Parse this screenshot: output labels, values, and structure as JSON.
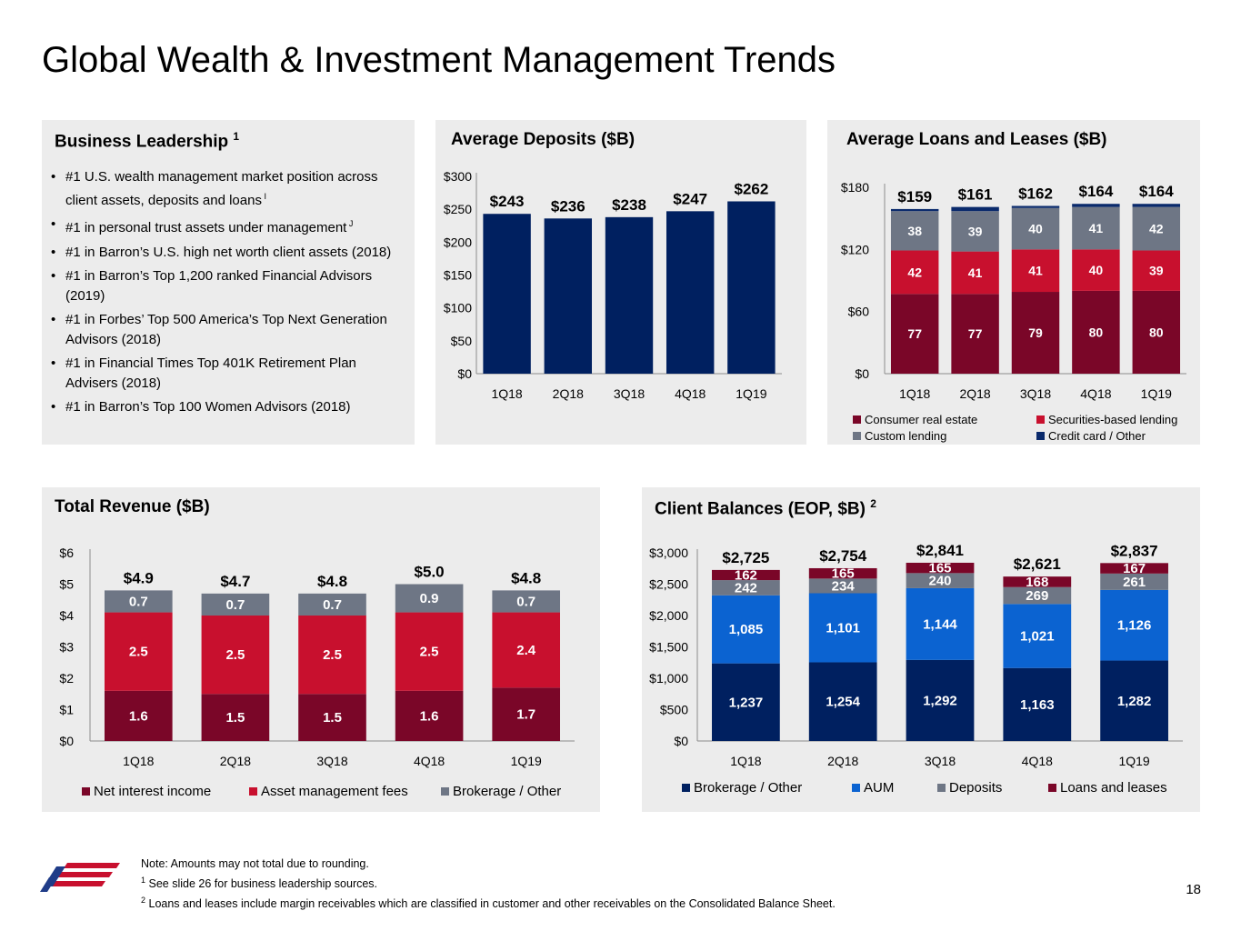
{
  "page_title": "Global Wealth & Investment Management Trends",
  "colors": {
    "dark_maroon": "#7a0628",
    "red": "#c8102e",
    "gray": "#6e7685",
    "navy": "#002060",
    "navy_bar": "#0a2a6c",
    "blue": "#0b63d1",
    "panel_bg": "#ececec"
  },
  "leadership": {
    "title": "Business Leadership",
    "title_sup": "1",
    "items": [
      {
        "text": "#1 U.S. wealth management market position across client assets, deposits and loans",
        "mark": "I"
      },
      {
        "text": "#1 in personal trust assets under management",
        "mark": "J"
      },
      {
        "text": "#1 in Barron’s U.S. high net worth client assets (2018)",
        "mark": ""
      },
      {
        "text": "#1 in Barron’s Top 1,200 ranked Financial Advisors (2019)",
        "mark": ""
      },
      {
        "text": "#1 in Forbes’ Top 500 America’s Top Next Generation Advisors (2018)",
        "mark": ""
      },
      {
        "text": "#1 in Financial Times Top 401K Retirement Plan Advisers (2018)",
        "mark": ""
      },
      {
        "text": "#1 in Barron’s Top 100 Women Advisors (2018)",
        "mark": ""
      }
    ]
  },
  "chart_data": [
    {
      "id": "deposits",
      "type": "bar",
      "title": "Average Deposits ($B)",
      "categories": [
        "1Q18",
        "2Q18",
        "3Q18",
        "4Q18",
        "1Q19"
      ],
      "series": [
        {
          "values": [
            243,
            236,
            238,
            247,
            262
          ]
        }
      ],
      "totals": [
        "$243",
        "$236",
        "$238",
        "$247",
        "$262"
      ],
      "y_ticks": [
        "$0",
        "$50",
        "$100",
        "$150",
        "$200",
        "$250",
        "$300"
      ],
      "ylim": [
        0,
        300
      ]
    },
    {
      "id": "loans",
      "type": "bar",
      "stacked": true,
      "title": "Average Loans and Leases ($B)",
      "categories": [
        "1Q18",
        "2Q18",
        "3Q18",
        "4Q18",
        "1Q19"
      ],
      "series": [
        {
          "name": "Consumer real estate",
          "color": "#7a0628",
          "values": [
            77,
            77,
            79,
            80,
            80
          ]
        },
        {
          "name": "Securities-based lending",
          "color": "#c8102e",
          "values": [
            42,
            41,
            41,
            40,
            39
          ]
        },
        {
          "name": "Custom lending",
          "color": "#6e7685",
          "values": [
            38,
            39,
            40,
            41,
            42
          ]
        },
        {
          "name": "Credit card / Other",
          "color": "#0a2a6c",
          "values": [
            2,
            4,
            2,
            3,
            3
          ]
        }
      ],
      "value_label_series": 3,
      "totals": [
        "$159",
        "$161",
        "$162",
        "$164",
        "$164"
      ],
      "y_ticks": [
        "$0",
        "$60",
        "$120",
        "$180"
      ],
      "ylim": [
        0,
        180
      ]
    },
    {
      "id": "revenue",
      "type": "bar",
      "stacked": true,
      "title": "Total Revenue ($B)",
      "categories": [
        "1Q18",
        "2Q18",
        "3Q18",
        "4Q18",
        "1Q19"
      ],
      "series": [
        {
          "name": "Net interest income",
          "color": "#7a0628",
          "values": [
            1.6,
            1.5,
            1.5,
            1.6,
            1.7
          ]
        },
        {
          "name": "Asset management fees",
          "color": "#c8102e",
          "values": [
            2.5,
            2.5,
            2.5,
            2.5,
            2.4
          ]
        },
        {
          "name": "Brokerage / Other",
          "color": "#6e7685",
          "values": [
            0.7,
            0.7,
            0.7,
            0.9,
            0.7
          ]
        }
      ],
      "value_label_series": 3,
      "totals": [
        "$4.9",
        "$4.7",
        "$4.8",
        "$5.0",
        "$4.8"
      ],
      "y_ticks": [
        "$0",
        "$1",
        "$2",
        "$3",
        "$4",
        "$5",
        "$6"
      ],
      "ylim": [
        0,
        6
      ]
    },
    {
      "id": "balances",
      "type": "bar",
      "stacked": true,
      "title": "Client Balances (EOP, $B)",
      "title_sup": "2",
      "categories": [
        "1Q18",
        "2Q18",
        "3Q18",
        "4Q18",
        "1Q19"
      ],
      "series": [
        {
          "name": "Brokerage / Other",
          "color": "#002060",
          "values": [
            1237,
            1254,
            1292,
            1163,
            1282
          ]
        },
        {
          "name": "AUM",
          "color": "#0b63d1",
          "values": [
            1085,
            1101,
            1144,
            1021,
            1126
          ]
        },
        {
          "name": "Deposits",
          "color": "#6e7685",
          "values": [
            242,
            234,
            240,
            269,
            261
          ]
        },
        {
          "name": "Loans and leases",
          "color": "#7a0628",
          "values": [
            162,
            165,
            165,
            168,
            167
          ]
        }
      ],
      "value_label_series": 4,
      "totals": [
        "$2,725",
        "$2,754",
        "$2,841",
        "$2,621",
        "$2,837"
      ],
      "y_ticks": [
        "$0",
        "$500",
        "$1,000",
        "$1,500",
        "$2,000",
        "$2,500",
        "$3,000"
      ],
      "ylim": [
        0,
        3000
      ]
    }
  ],
  "notes": {
    "line1": "Note: Amounts may not total due to rounding.",
    "line2_sup": "1",
    "line2": "See slide 26 for business leadership sources.",
    "line3_sup": "2",
    "line3": "Loans and leases include margin receivables which are classified in customer and other receivables on the Consolidated Balance Sheet."
  },
  "page_number": "18"
}
